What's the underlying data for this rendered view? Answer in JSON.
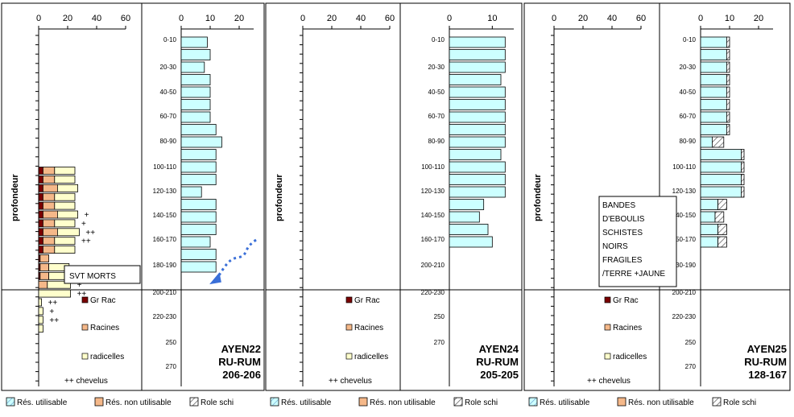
{
  "colors": {
    "gr_rac": "#7a0000",
    "racines": "#f5b889",
    "radicelles": "#ffffcc",
    "res_utilisable": "#ccffff",
    "res_non_utilisable": "#f5b889",
    "role_schi": "#ffffff",
    "frame": "#000000"
  },
  "left_ylabel": "profondeur",
  "bottom_legend": [
    "Rés. utilisable",
    "Rés. non utilisable",
    "Role schi"
  ],
  "roots_legend": [
    "Gr Rac",
    "Racines",
    "radicelles",
    "++ chevelus"
  ],
  "chart_data": [
    {
      "id": "AYEN22",
      "title": [
        "AYEN22",
        "RU-RUM",
        "206-206"
      ],
      "roots": {
        "type": "bar",
        "orientation": "horizontal",
        "stacked": true,
        "xlim": [
          0,
          60
        ],
        "xticks": [
          "0",
          "20",
          "40",
          "60"
        ],
        "series": [
          {
            "name": "Gr Rac",
            "values": [
              0,
              0,
              0,
              0,
              0,
              0,
              0,
              0,
              0,
              0,
              0,
              0,
              0,
              0,
              0,
              3,
              3,
              3,
              3,
              3,
              3,
              3,
              3,
              3,
              3,
              1,
              1,
              1,
              0,
              0,
              0,
              0,
              0,
              0
            ]
          },
          {
            "name": "Racines",
            "values": [
              0,
              0,
              0,
              0,
              0,
              0,
              0,
              0,
              0,
              0,
              0,
              0,
              0,
              0,
              0,
              8,
              8,
              10,
              8,
              8,
              10,
              8,
              10,
              8,
              8,
              6,
              6,
              6,
              6,
              0,
              0,
              0,
              0,
              0
            ]
          },
          {
            "name": "radicelles",
            "values": [
              0,
              0,
              0,
              0,
              0,
              0,
              0,
              0,
              0,
              0,
              0,
              0,
              0,
              0,
              0,
              14,
              14,
              14,
              14,
              14,
              14,
              14,
              15,
              14,
              14,
              0,
              14,
              16,
              16,
              22,
              2,
              3,
              3,
              3
            ]
          }
        ],
        "chevelus": [
          "",
          "",
          "",
          "",
          "",
          "",
          "",
          "",
          "",
          "",
          "",
          "",
          "",
          "",
          "",
          "",
          "",
          "",
          "",
          "",
          "+",
          "+",
          "++",
          "++",
          "",
          "",
          "++",
          "+",
          "+",
          "++",
          "++",
          "+",
          "++",
          ""
        ],
        "annotations": [
          {
            "text": "SVT MORTS"
          }
        ]
      },
      "ru": {
        "type": "bar",
        "orientation": "horizontal",
        "stacked": true,
        "xlim": [
          0,
          25
        ],
        "xticks": [
          "0",
          "10",
          "20"
        ],
        "depth_labels": [
          "0-10",
          "20-30",
          "40-50",
          "60-70",
          "80-90",
          "100-110",
          "120-130",
          "140-150",
          "160-170",
          "180-190",
          "200-210",
          "220-230",
          "250",
          "270"
        ],
        "series": [
          {
            "name": "Rés. utilisable",
            "values": [
              9,
              10,
              8,
              10,
              10,
              10,
              10,
              12,
              14,
              12,
              12,
              12,
              7,
              12,
              12,
              12,
              10,
              12,
              12
            ]
          },
          {
            "name": "Role schi",
            "values": [
              0,
              0,
              0,
              0,
              0,
              0,
              0,
              0,
              0,
              0,
              0,
              0,
              0,
              0,
              0,
              0,
              0,
              0,
              0
            ]
          }
        ]
      }
    },
    {
      "id": "AYEN24",
      "title": [
        "AYEN24",
        "RU-RUM",
        "205-205"
      ],
      "roots": {
        "type": "bar",
        "orientation": "horizontal",
        "stacked": true,
        "xlim": [
          0,
          60
        ],
        "xticks": [
          "0",
          "20",
          "40",
          "60"
        ],
        "series": [
          {
            "name": "Gr Rac",
            "values": [
              0,
              0,
              0,
              0,
              0,
              0,
              0,
              0,
              0,
              0,
              0,
              0,
              0,
              0,
              0,
              0,
              0,
              0,
              0,
              0,
              0,
              0,
              0,
              0,
              0,
              0,
              0,
              0,
              0,
              0,
              0,
              0,
              0,
              0
            ]
          },
          {
            "name": "Racines",
            "values": [
              0,
              0,
              0,
              0,
              0,
              0,
              0,
              0,
              0,
              0,
              0,
              0,
              0,
              0,
              0,
              0,
              0,
              0,
              0,
              0,
              0,
              0,
              0,
              0,
              0,
              0,
              0,
              0,
              0,
              0,
              0,
              0,
              0,
              0
            ]
          },
          {
            "name": "radicelles",
            "values": [
              0,
              0,
              0,
              0,
              0,
              0,
              0,
              0,
              0,
              0,
              0,
              0,
              0,
              0,
              0,
              0,
              0,
              0,
              0,
              0,
              0,
              0,
              0,
              0,
              0,
              0,
              0,
              0,
              0,
              0,
              0,
              0,
              0,
              0
            ]
          }
        ],
        "chevelus": [
          "",
          "",
          "",
          "",
          "",
          "",
          "",
          "",
          "",
          "",
          "",
          "",
          "",
          "",
          "",
          "",
          "",
          "",
          "",
          "",
          "",
          "",
          "",
          "",
          "",
          "",
          "",
          "",
          "",
          "",
          "",
          "",
          "",
          ""
        ]
      },
      "ru": {
        "type": "bar",
        "orientation": "horizontal",
        "stacked": true,
        "xlim": [
          0,
          15
        ],
        "xticks": [
          "0",
          "10"
        ],
        "depth_labels": [
          "0-10",
          "20-30",
          "40-50",
          "60-70",
          "80-90",
          "100-110",
          "120-130",
          "140-150",
          "160-170",
          "200-210",
          "220-230",
          "250",
          "270"
        ],
        "series": [
          {
            "name": "Rés. utilisable",
            "values": [
              13,
              13,
              13,
              12,
              13,
              13,
              13,
              13,
              13,
              12,
              13,
              13,
              13,
              8,
              7,
              9,
              10
            ]
          },
          {
            "name": "Role schi",
            "values": [
              0,
              0,
              0,
              0,
              0,
              0,
              0,
              0,
              0,
              0,
              0,
              0,
              0,
              0,
              0,
              0,
              0
            ]
          }
        ]
      }
    },
    {
      "id": "AYEN25",
      "title": [
        "AYEN25",
        "RU-RUM",
        "128-167"
      ],
      "roots": {
        "type": "bar",
        "orientation": "horizontal",
        "stacked": true,
        "xlim": [
          0,
          60
        ],
        "xticks": [
          "0",
          "20",
          "40",
          "60"
        ],
        "series": [
          {
            "name": "Gr Rac",
            "values": [
              0,
              0,
              0,
              0,
              0,
              0,
              0,
              0,
              0,
              0,
              0,
              0,
              0,
              0,
              0,
              0,
              0,
              0,
              0,
              0,
              0,
              0,
              0,
              0,
              0,
              0,
              0,
              0,
              0,
              0,
              0,
              0,
              0,
              0
            ]
          },
          {
            "name": "Racines",
            "values": [
              0,
              0,
              0,
              0,
              0,
              0,
              0,
              0,
              0,
              0,
              0,
              0,
              0,
              0,
              0,
              0,
              0,
              0,
              0,
              0,
              0,
              0,
              0,
              0,
              0,
              0,
              0,
              0,
              0,
              0,
              0,
              0,
              0,
              0
            ]
          },
          {
            "name": "radicelles",
            "values": [
              0,
              0,
              0,
              0,
              0,
              0,
              0,
              0,
              0,
              0,
              0,
              0,
              0,
              0,
              0,
              0,
              0,
              0,
              0,
              0,
              0,
              0,
              0,
              0,
              0,
              0,
              0,
              0,
              0,
              0,
              0,
              0,
              0,
              0
            ]
          }
        ],
        "chevelus": [
          "",
          "",
          "",
          "",
          "",
          "",
          "",
          "",
          "",
          "",
          "",
          "",
          "",
          "",
          "",
          "",
          "",
          "",
          "",
          "",
          "",
          "",
          "",
          "",
          "",
          "",
          "",
          "",
          "",
          "",
          "",
          "",
          "",
          ""
        ],
        "annotations": [
          {
            "text": [
              "BANDES",
              "D'EBOULIS",
              "SCHISTES",
              "NOIRS",
              "FRAGILES",
              "/TERRE +JAUNE"
            ]
          }
        ]
      },
      "ru": {
        "type": "bar",
        "orientation": "horizontal",
        "stacked": true,
        "xlim": [
          0,
          25
        ],
        "xticks": [
          "0",
          "10",
          "20"
        ],
        "depth_labels": [
          "0-10",
          "20-30",
          "40-50",
          "60-70",
          "80-90",
          "100-110",
          "120-130",
          "40-150",
          "50-170",
          "30-190",
          "200-210",
          "220-230",
          "250",
          "270"
        ],
        "series": [
          {
            "name": "Rés. utilisable",
            "values": [
              9,
              9,
              9,
              9,
              9,
              9,
              9,
              9,
              4,
              14,
              14,
              14,
              14,
              6,
              5,
              6,
              6
            ]
          },
          {
            "name": "Role schi",
            "values": [
              1,
              1,
              1,
              1,
              1,
              1,
              1,
              1,
              4,
              1,
              1,
              1,
              1,
              3,
              3,
              3,
              3
            ]
          }
        ]
      }
    }
  ]
}
